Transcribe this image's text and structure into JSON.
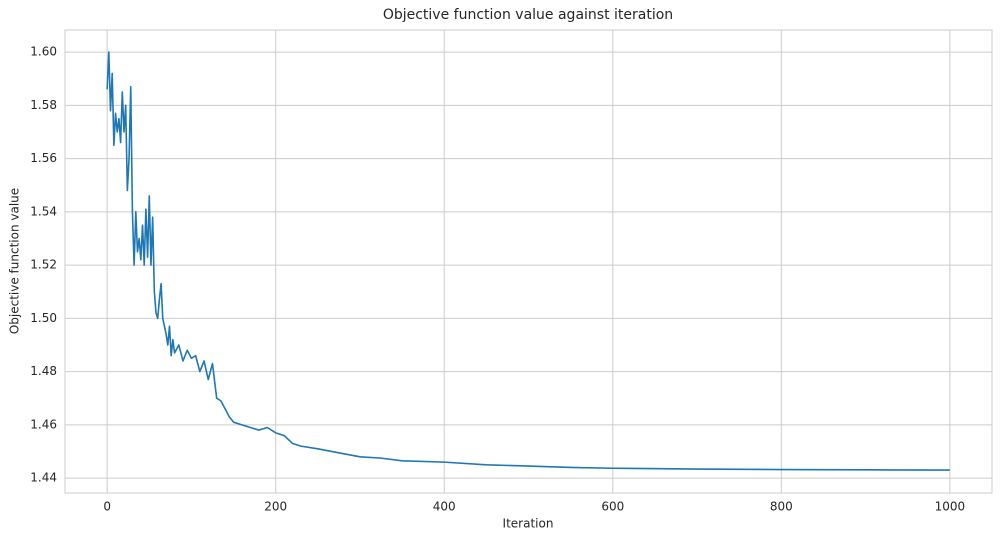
{
  "chart_data": {
    "type": "line",
    "title": "Objective function value against iteration",
    "x_label": "Iteration",
    "y_label": "Objective function value",
    "x": [
      0,
      2,
      4,
      6,
      8,
      10,
      12,
      14,
      16,
      18,
      20,
      22,
      24,
      26,
      28,
      30,
      32,
      34,
      36,
      38,
      40,
      42,
      44,
      46,
      48,
      50,
      52,
      54,
      56,
      58,
      60,
      62,
      64,
      66,
      68,
      70,
      72,
      74,
      76,
      78,
      80,
      85,
      90,
      95,
      100,
      105,
      110,
      115,
      120,
      125,
      130,
      135,
      140,
      145,
      150,
      160,
      170,
      180,
      190,
      200,
      210,
      220,
      230,
      250,
      275,
      300,
      325,
      350,
      400,
      450,
      500,
      550,
      600,
      700,
      800,
      900,
      1000
    ],
    "series": [
      {
        "name": "Objective function value",
        "color": "#1f77b4",
        "values": [
          1.586,
          1.6,
          1.578,
          1.592,
          1.565,
          1.577,
          1.57,
          1.575,
          1.566,
          1.585,
          1.57,
          1.58,
          1.548,
          1.56,
          1.587,
          1.54,
          1.52,
          1.54,
          1.525,
          1.53,
          1.522,
          1.535,
          1.52,
          1.541,
          1.523,
          1.546,
          1.52,
          1.538,
          1.51,
          1.502,
          1.5,
          1.507,
          1.513,
          1.5,
          1.497,
          1.494,
          1.49,
          1.497,
          1.486,
          1.492,
          1.487,
          1.49,
          1.484,
          1.488,
          1.485,
          1.486,
          1.48,
          1.484,
          1.477,
          1.483,
          1.47,
          1.469,
          1.466,
          1.463,
          1.461,
          1.46,
          1.459,
          1.458,
          1.459,
          1.457,
          1.456,
          1.453,
          1.452,
          1.451,
          1.4495,
          1.448,
          1.4475,
          1.4465,
          1.446,
          1.445,
          1.4445,
          1.444,
          1.4437,
          1.4434,
          1.4432,
          1.4431,
          1.443
        ]
      }
    ],
    "xlim": [
      -50,
      1050
    ],
    "xticks": [
      0,
      200,
      400,
      600,
      800,
      1000
    ],
    "ylim": [
      1.4344,
      1.6083
    ],
    "yticks": [
      {
        "value": 1.44,
        "label": "1.44"
      },
      {
        "value": 1.46,
        "label": "1.46"
      },
      {
        "value": 1.48,
        "label": "1.48"
      },
      {
        "value": 1.5,
        "label": "1.50"
      },
      {
        "value": 1.52,
        "label": "1.52"
      },
      {
        "value": 1.54,
        "label": "1.54"
      },
      {
        "value": 1.56,
        "label": "1.56"
      },
      {
        "value": 1.58,
        "label": "1.58"
      },
      {
        "value": 1.6,
        "label": "1.60"
      }
    ],
    "grid": true
  }
}
